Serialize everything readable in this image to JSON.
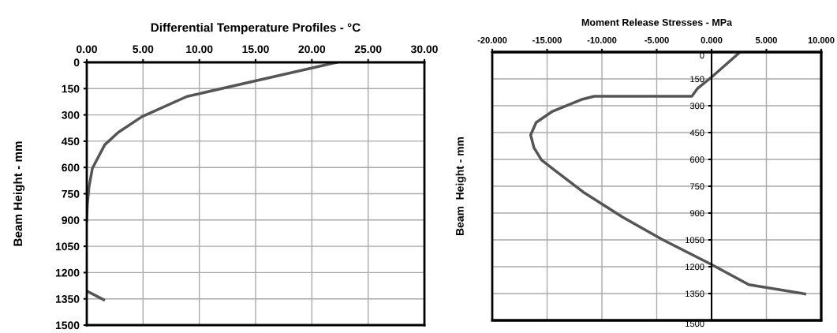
{
  "chart_data": [
    {
      "type": "line",
      "title": "Differential Temperature Profiles - °C",
      "ylabel": "Beam Height - mm",
      "xlim": [
        0,
        30
      ],
      "ylim": [
        1500,
        0
      ],
      "grid": true,
      "line_style": "solid",
      "marker": "none",
      "xticks": [
        {
          "value": 0,
          "label": "0.00"
        },
        {
          "value": 5,
          "label": "5.00"
        },
        {
          "value": 10,
          "label": "10.00"
        },
        {
          "value": 15,
          "label": "15.00"
        },
        {
          "value": 20,
          "label": "20.00"
        },
        {
          "value": 25,
          "label": "25.00"
        },
        {
          "value": 30,
          "label": "30.00"
        }
      ],
      "yticks": [
        0,
        150,
        300,
        450,
        600,
        750,
        900,
        1050,
        1200,
        1350,
        1500
      ],
      "series": [
        {
          "color": "#555555",
          "x": [
            22.2,
            8.9,
            4.9,
            2.8,
            1.6,
            0.5,
            0.2,
            0.05,
            0.0,
            null,
            0.0,
            1.5
          ],
          "values": [
            0,
            195,
            310,
            400,
            470,
            605,
            710,
            815,
            905,
            null,
            1305,
            1355
          ]
        }
      ]
    },
    {
      "type": "line",
      "title": "Moment Release Stresses - MPa",
      "ylabel": "Beam  Height - mm",
      "xlim": [
        -20,
        10
      ],
      "ylim": [
        1500,
        0
      ],
      "grid": true,
      "line_style": "solid",
      "marker": "none",
      "xticks": [
        {
          "value": -20,
          "label": "-20.000"
        },
        {
          "value": -15,
          "label": "-15.000"
        },
        {
          "value": -10,
          "label": "-10.000"
        },
        {
          "value": -5,
          "label": "-5.000"
        },
        {
          "value": 0,
          "label": "0.000"
        },
        {
          "value": 5,
          "label": "5.000"
        },
        {
          "value": 10,
          "label": "10.000"
        }
      ],
      "yticks": [
        0,
        150,
        300,
        450,
        600,
        750,
        900,
        1050,
        1200,
        1350,
        1500
      ],
      "series": [
        {
          "color": "#555555",
          "x": [
            2.6,
            0.0,
            -1.3,
            -1.8,
            -10.7,
            -11.9,
            -14.5,
            -16.0,
            -16.5,
            -16.2,
            -15.5,
            -14.2,
            -11.7,
            -8.1,
            -4.5,
            0.0,
            3.4,
            8.5
          ],
          "values": [
            0,
            140,
            205,
            247,
            247,
            266,
            331,
            394,
            463,
            534,
            604,
            666,
            783,
            923,
            1048,
            1188,
            1300,
            1352
          ]
        }
      ]
    }
  ]
}
